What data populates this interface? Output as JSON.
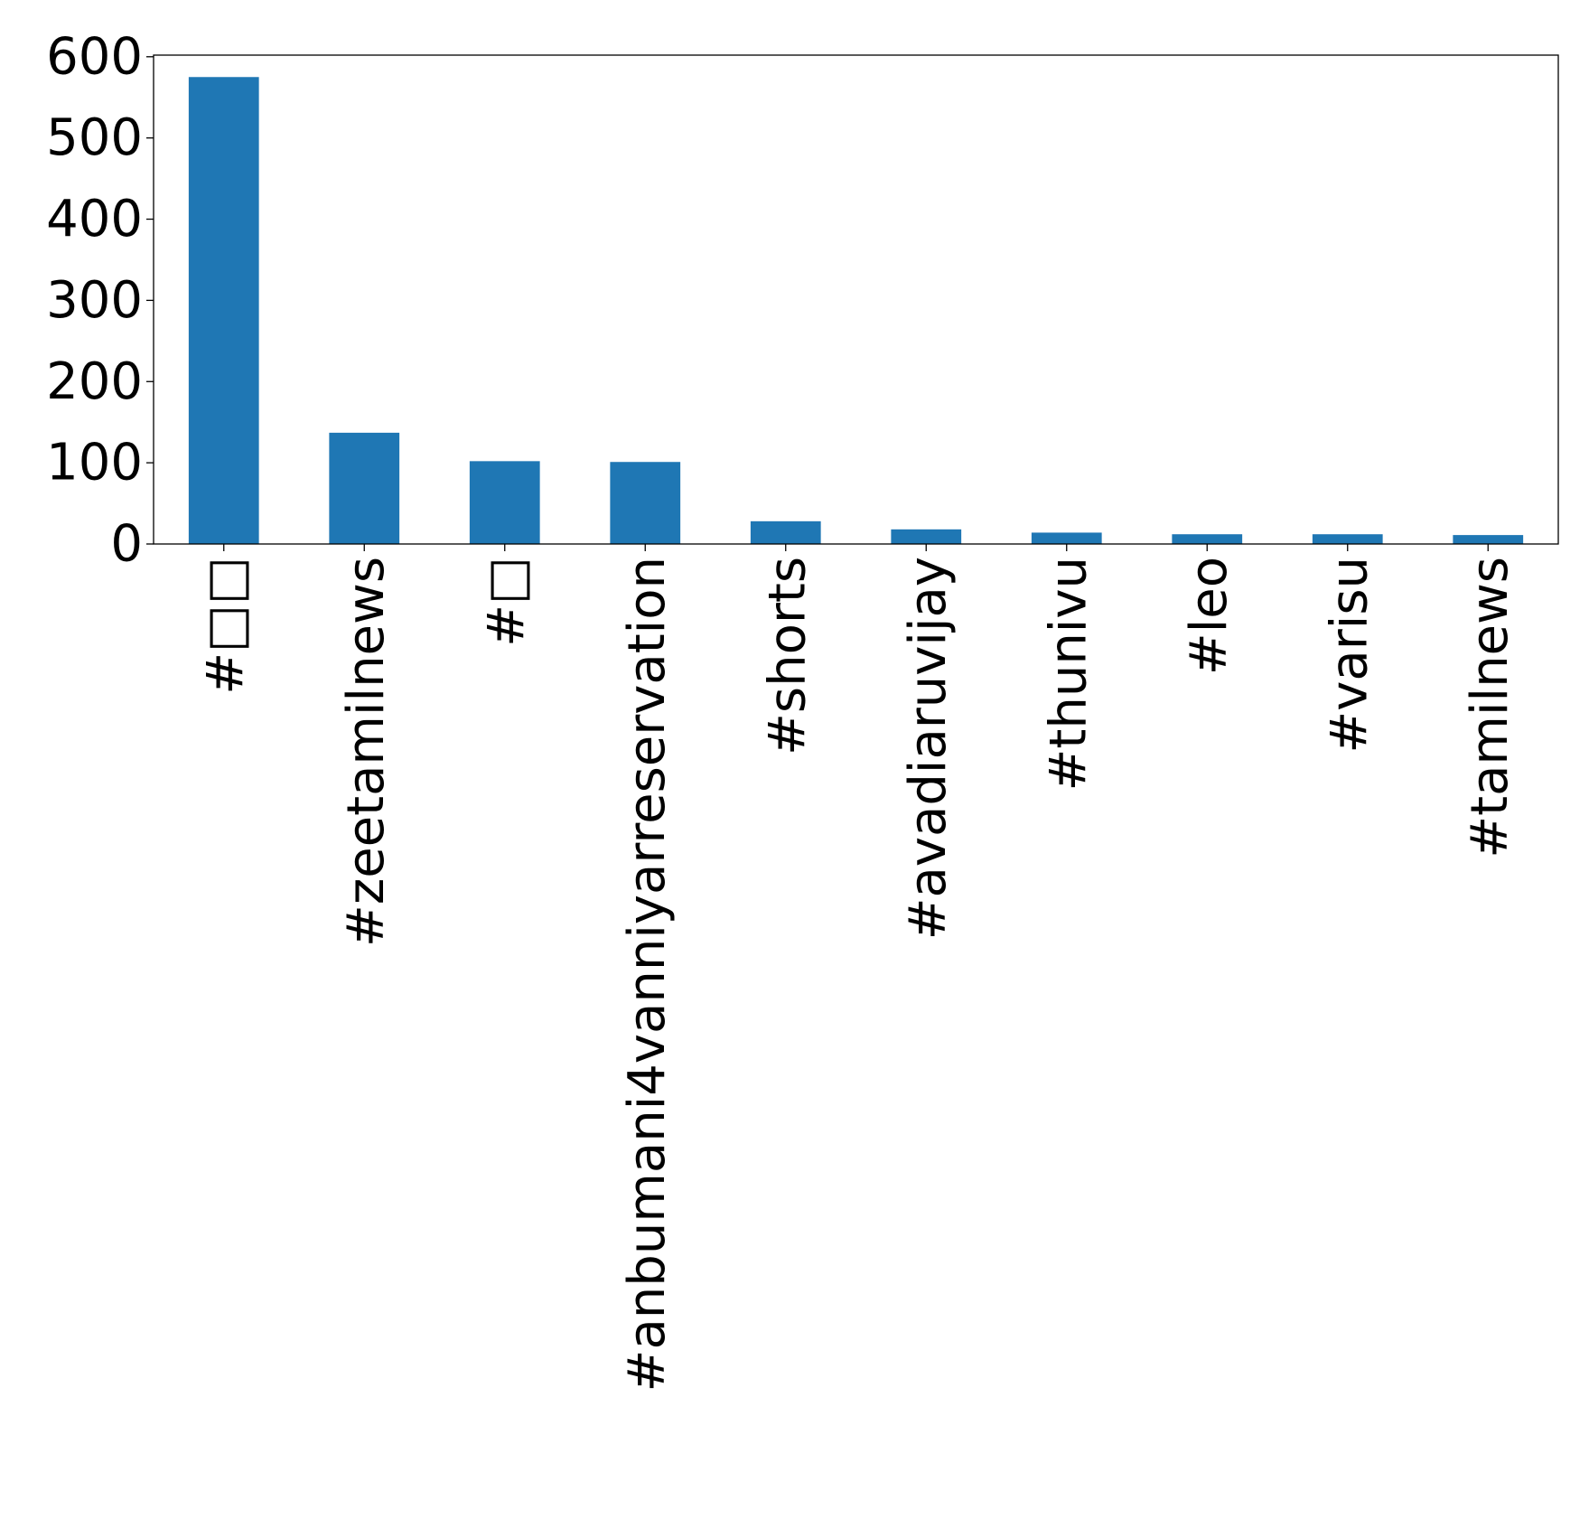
{
  "chart_data": {
    "type": "bar",
    "title": "",
    "xlabel": "",
    "ylabel": "",
    "categories": [
      "#□□",
      "#zeetamilnews",
      "#□",
      "#anbumani4vanniyarreservation",
      "#shorts",
      "#avadiaruvijay",
      "#thunivu",
      "#leo",
      "#varisu",
      "#tamilnews"
    ],
    "values": [
      575,
      137,
      102,
      101,
      28,
      18,
      14,
      12,
      12,
      11
    ],
    "ylim": [
      0,
      602
    ],
    "yticks": [
      0,
      100,
      200,
      300,
      400,
      500,
      600
    ],
    "grid": false,
    "legend": "none",
    "colors": {
      "bar": "#1f77b4",
      "axes": "#000000",
      "background": "#ffffff"
    }
  }
}
